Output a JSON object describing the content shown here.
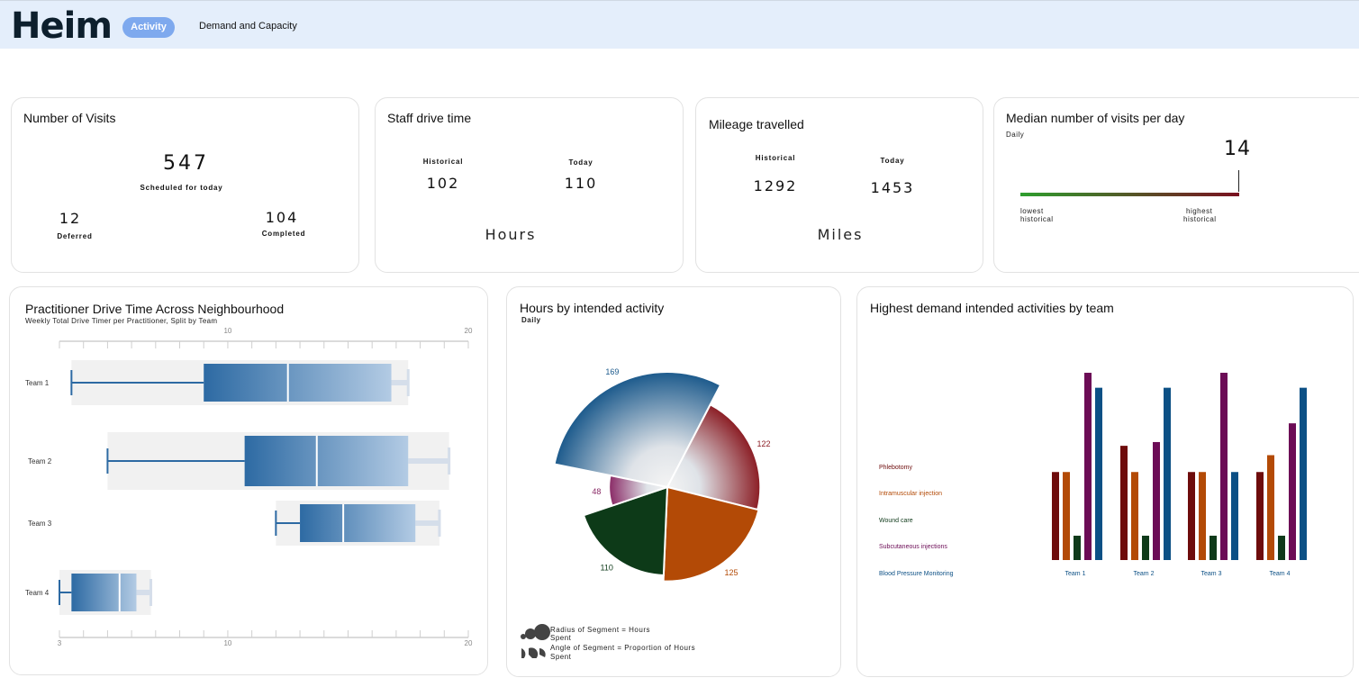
{
  "header": {
    "logo": "Heim",
    "nav": [
      {
        "label": "Activity",
        "active": true
      },
      {
        "label": "Demand and Capacity",
        "active": false
      }
    ]
  },
  "visits": {
    "title": "Number of Visits",
    "scheduled_value": "547",
    "scheduled_label": "Scheduled for today",
    "deferred_value": "12",
    "deferred_label": "Deferred",
    "completed_value": "104",
    "completed_label": "Completed"
  },
  "drive_time": {
    "title": "Staff drive time",
    "historical_label": "Historical",
    "historical_value": "102",
    "today_label": "Today",
    "today_value": "110",
    "unit": "Hours"
  },
  "mileage": {
    "title": "Mileage travelled",
    "historical_label": "Historical",
    "historical_value": "1292",
    "today_label": "Today",
    "today_value": "1453",
    "unit": "Miles"
  },
  "median_visits": {
    "title": "Median number of visits per day",
    "subtitle": "Daily",
    "value": "14",
    "low_label_1": "lowest",
    "low_label_2": "historical",
    "high_label_1": "highest",
    "high_label_2": "historical",
    "gradient_start": "#2e9e2e",
    "gradient_end": "#7a1020"
  },
  "practitioner": {
    "title": "Practitioner Drive Time Across Neighbourhood",
    "subtitle": "Weekly Total Drive Timer per Practitioner, Split by Team"
  },
  "hours_activity": {
    "title": "Hours by intended activity",
    "subtitle": "Daily",
    "legend_radius_1": "Radius of Segment = Hours",
    "legend_radius_2": "Spent",
    "legend_angle_1": "Angle of Segment = Proportion of Hours",
    "legend_angle_2": "Spent"
  },
  "demand": {
    "title": "Highest demand intended activities by team"
  },
  "chart_data": [
    {
      "type": "box",
      "axis_ticks": [
        "3",
        "10",
        "20"
      ],
      "xlim": [
        3,
        20
      ],
      "series": [
        {
          "name": "Team 1",
          "min": 3.5,
          "q1": 9,
          "median": 12.5,
          "q3": 16.8,
          "max": 17.5
        },
        {
          "name": "Team 2",
          "min": 5,
          "q1": 10.7,
          "median": 13.7,
          "q3": 17.5,
          "max": 19.2
        },
        {
          "name": "Team 3",
          "min": 12,
          "q1": 13,
          "median": 14.8,
          "q3": 17.8,
          "max": 18.8
        },
        {
          "name": "Team 4",
          "min": 3,
          "q1": 3.5,
          "median": 5.5,
          "q3": 6.2,
          "max": 6.8
        }
      ]
    },
    {
      "type": "pie",
      "slices": [
        {
          "label": "169",
          "value": 169,
          "color": "#1c5a8c"
        },
        {
          "label": "122",
          "value": 122,
          "color": "#8b1d24"
        },
        {
          "label": "125",
          "value": 125,
          "color": "#b34a06"
        },
        {
          "label": "110",
          "value": 110,
          "color": "#0d3a18"
        },
        {
          "label": "48",
          "value": 48,
          "color": "#8a2a66"
        }
      ]
    },
    {
      "type": "bar",
      "categories": [
        "Team 1",
        "Team 2",
        "Team 3",
        "Team 4"
      ],
      "ylim": [
        0,
        100
      ],
      "series": [
        {
          "name": "Phlebotomy",
          "color": "#6e0c0c",
          "values": [
            47,
            61,
            47,
            47
          ]
        },
        {
          "name": "Intramuscular injection",
          "color": "#b34a06",
          "values": [
            47,
            47,
            47,
            56
          ]
        },
        {
          "name": "Wound care",
          "color": "#0f3a1a",
          "values": [
            13,
            13,
            13,
            13
          ]
        },
        {
          "name": "Subcutaneous injections",
          "color": "#6c0c56",
          "values": [
            100,
            63,
            100,
            73
          ]
        },
        {
          "name": "Blood Pressure Monitoring",
          "color": "#0c5085",
          "values": [
            92,
            92,
            47,
            92
          ]
        }
      ]
    }
  ]
}
